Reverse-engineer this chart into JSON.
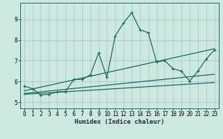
{
  "xlabel": "Humidex (Indice chaleur)",
  "bg_color": "#cce8e0",
  "grid_color": "#a8ccc4",
  "line_color": "#1a6858",
  "xlim": [
    -0.5,
    23.5
  ],
  "ylim": [
    4.7,
    9.8
  ],
  "yticks": [
    5,
    6,
    7,
    8,
    9
  ],
  "xticks": [
    0,
    1,
    2,
    3,
    4,
    5,
    6,
    7,
    8,
    9,
    10,
    11,
    12,
    13,
    14,
    15,
    16,
    17,
    18,
    19,
    20,
    21,
    22,
    23
  ],
  "series_main": {
    "x": [
      0,
      1,
      2,
      3,
      4,
      5,
      6,
      7,
      8,
      9,
      10,
      11,
      12,
      13,
      14,
      15,
      16,
      17,
      18,
      19,
      20,
      21,
      22,
      23
    ],
    "y": [
      5.78,
      5.65,
      5.35,
      5.38,
      5.5,
      5.52,
      6.1,
      6.1,
      6.32,
      7.38,
      6.2,
      8.2,
      8.82,
      9.32,
      8.5,
      8.35,
      6.95,
      7.0,
      6.62,
      6.5,
      6.02,
      6.5,
      7.08,
      7.52
    ]
  },
  "series_lines": [
    {
      "x": [
        0,
        23
      ],
      "y": [
        5.55,
        7.58
      ]
    },
    {
      "x": [
        0,
        23
      ],
      "y": [
        5.42,
        6.35
      ]
    },
    {
      "x": [
        0,
        23
      ],
      "y": [
        5.38,
        5.95
      ]
    }
  ]
}
